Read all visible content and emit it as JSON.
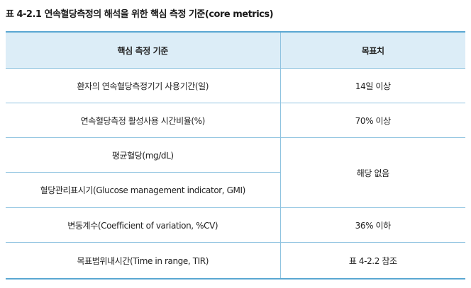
{
  "caption": "표 4-2.1 연속혈당측정의 해석을 위한 핵심 측정 기준(core metrics)",
  "table": {
    "headers": [
      "핵심 측정 기준",
      "목표치"
    ],
    "rows": [
      {
        "metric": "환자의 연속혈당측정기기 사용기간(일)",
        "target": "14일 이상"
      },
      {
        "metric": "연속혈당측정 활성사용 시간비율(%)",
        "target": "70% 이상"
      },
      {
        "metric": "평균혈당(mg/dL)",
        "target": "해당 없음"
      },
      {
        "metric": "혈당관리표시기(Glucose management indicator, GMI)",
        "target": ""
      },
      {
        "metric": "변동계수(Coefficient of variation, %CV)",
        "target": "36% 이하"
      },
      {
        "metric": "목표범위내시간(Time in range, TIR)",
        "target": "표 4-2.2 참조"
      }
    ]
  }
}
